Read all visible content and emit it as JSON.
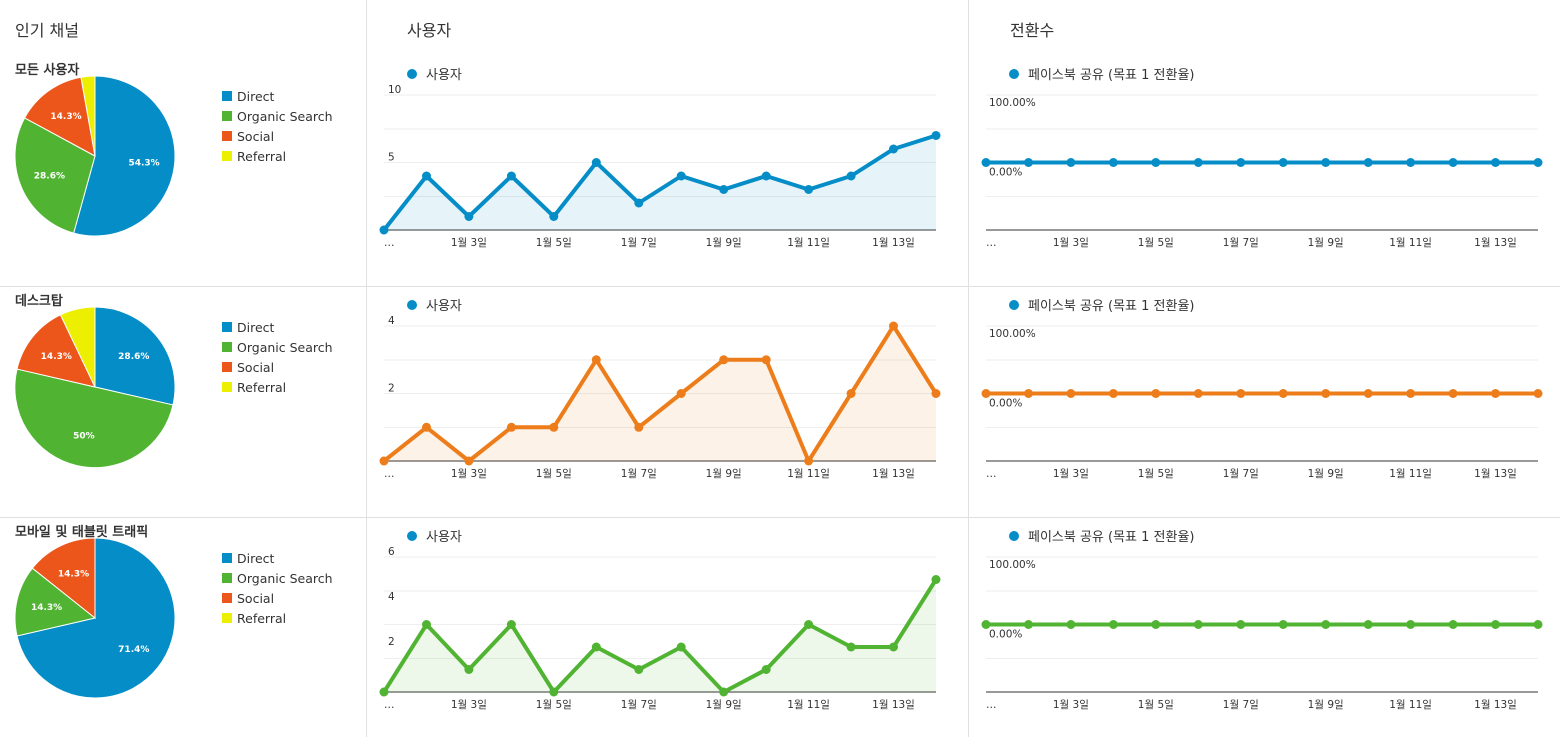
{
  "columns": {
    "channels_title": "인기 채널",
    "users_title": "사용자",
    "conversions_title": "전환수"
  },
  "colors": {
    "direct": "#058dc7",
    "organic": "#50b432",
    "social": "#ed561b",
    "referral": "#edef00",
    "blue": "#058dc7",
    "orange": "#ed7d1a",
    "green": "#50b432"
  },
  "legend_users": "사용자",
  "legend_conversions": "페이스북 공유 (목표 1 전환율)",
  "rows": [
    {
      "label": "모든 사용자"
    },
    {
      "label": "데스크탑"
    },
    {
      "label": "모바일 및 태블릿 트래픽"
    }
  ],
  "chart_data": [
    {
      "type": "pie",
      "title": "모든 사용자",
      "categories": [
        "Direct",
        "Organic Search",
        "Social",
        "Referral"
      ],
      "values": [
        54.3,
        28.6,
        14.3,
        2.8
      ],
      "labels": [
        "54.3%",
        "28.6%",
        "14.3%",
        ""
      ],
      "colors": [
        "#058dc7",
        "#50b432",
        "#ed561b",
        "#edef00"
      ],
      "legend": "right"
    },
    {
      "type": "line",
      "x_tick_labels": [
        "…",
        "1월 3일",
        "1월 5일",
        "1월 7일",
        "1월 9일",
        "1월 11일",
        "1월 13일"
      ],
      "series": [
        {
          "name": "사용자",
          "color": "#058dc7",
          "values": [
            0,
            4,
            1,
            4,
            1,
            5,
            2,
            4,
            3,
            4,
            3,
            4,
            6,
            7
          ]
        }
      ],
      "y_ticks": [
        "5",
        "10"
      ],
      "ylim": [
        0,
        10
      ],
      "area": true
    },
    {
      "type": "line",
      "x_tick_labels": [
        "…",
        "1월 3일",
        "1월 5일",
        "1월 7일",
        "1월 9일",
        "1월 11일",
        "1월 13일"
      ],
      "series": [
        {
          "name": "페이스북 공유 (목표 1 전환율)",
          "color": "#058dc7",
          "values": [
            0,
            0,
            0,
            0,
            0,
            0,
            0,
            0,
            0,
            0,
            0,
            0,
            0,
            0
          ]
        }
      ],
      "y_ticks": [
        "0.00%",
        "100.00%"
      ],
      "ylim": [
        -1,
        1
      ],
      "area": false
    },
    {
      "type": "pie",
      "title": "데스크탑",
      "categories": [
        "Direct",
        "Organic Search",
        "Social",
        "Referral"
      ],
      "values": [
        28.6,
        50,
        14.3,
        7.1
      ],
      "labels": [
        "28.6%",
        "50%",
        "14.3%",
        ""
      ],
      "colors": [
        "#058dc7",
        "#50b432",
        "#ed561b",
        "#edef00"
      ],
      "legend": "right"
    },
    {
      "type": "line",
      "x_tick_labels": [
        "…",
        "1월 3일",
        "1월 5일",
        "1월 7일",
        "1월 9일",
        "1월 11일",
        "1월 13일"
      ],
      "series": [
        {
          "name": "사용자",
          "color": "#ed7d1a",
          "values": [
            0,
            1,
            0,
            1,
            1,
            3,
            1,
            2,
            3,
            3,
            0,
            2,
            4,
            2
          ]
        }
      ],
      "y_ticks": [
        "2",
        "4"
      ],
      "ylim": [
        0,
        4
      ],
      "area": true
    },
    {
      "type": "line",
      "x_tick_labels": [
        "…",
        "1월 3일",
        "1월 5일",
        "1월 7일",
        "1월 9일",
        "1월 11일",
        "1월 13일"
      ],
      "series": [
        {
          "name": "페이스북 공유 (목표 1 전환율)",
          "color": "#ed7d1a",
          "values": [
            0,
            0,
            0,
            0,
            0,
            0,
            0,
            0,
            0,
            0,
            0,
            0,
            0,
            0
          ]
        }
      ],
      "y_ticks": [
        "0.00%",
        "100.00%"
      ],
      "ylim": [
        -1,
        1
      ],
      "area": false
    },
    {
      "type": "pie",
      "title": "모바일 및 태블릿 트래픽",
      "categories": [
        "Direct",
        "Organic Search",
        "Social",
        "Referral"
      ],
      "values": [
        71.4,
        14.3,
        14.3,
        0
      ],
      "labels": [
        "71.4%",
        "14.3%",
        "14.3%",
        ""
      ],
      "colors": [
        "#058dc7",
        "#50b432",
        "#ed561b",
        "#edef00"
      ],
      "legend": "right"
    },
    {
      "type": "line",
      "x_tick_labels": [
        "…",
        "1월 3일",
        "1월 5일",
        "1월 7일",
        "1월 9일",
        "1월 11일",
        "1월 13일"
      ],
      "series": [
        {
          "name": "사용자",
          "color": "#50b432",
          "values": [
            0,
            3,
            1,
            3,
            0,
            2,
            1,
            2,
            0,
            1,
            3,
            2,
            2,
            5
          ]
        }
      ],
      "y_ticks": [
        "2",
        "4",
        "6"
      ],
      "ylim": [
        0,
        6
      ],
      "area": true
    },
    {
      "type": "line",
      "x_tick_labels": [
        "…",
        "1월 3일",
        "1월 5일",
        "1월 7일",
        "1월 9일",
        "1월 11일",
        "1월 13일"
      ],
      "series": [
        {
          "name": "페이스북 공유 (목표 1 전환율)",
          "color": "#50b432",
          "values": [
            0,
            0,
            0,
            0,
            0,
            0,
            0,
            0,
            0,
            0,
            0,
            0,
            0,
            0
          ]
        }
      ],
      "y_ticks": [
        "0.00%",
        "100.00%"
      ],
      "ylim": [
        -1,
        1
      ],
      "area": false
    }
  ]
}
